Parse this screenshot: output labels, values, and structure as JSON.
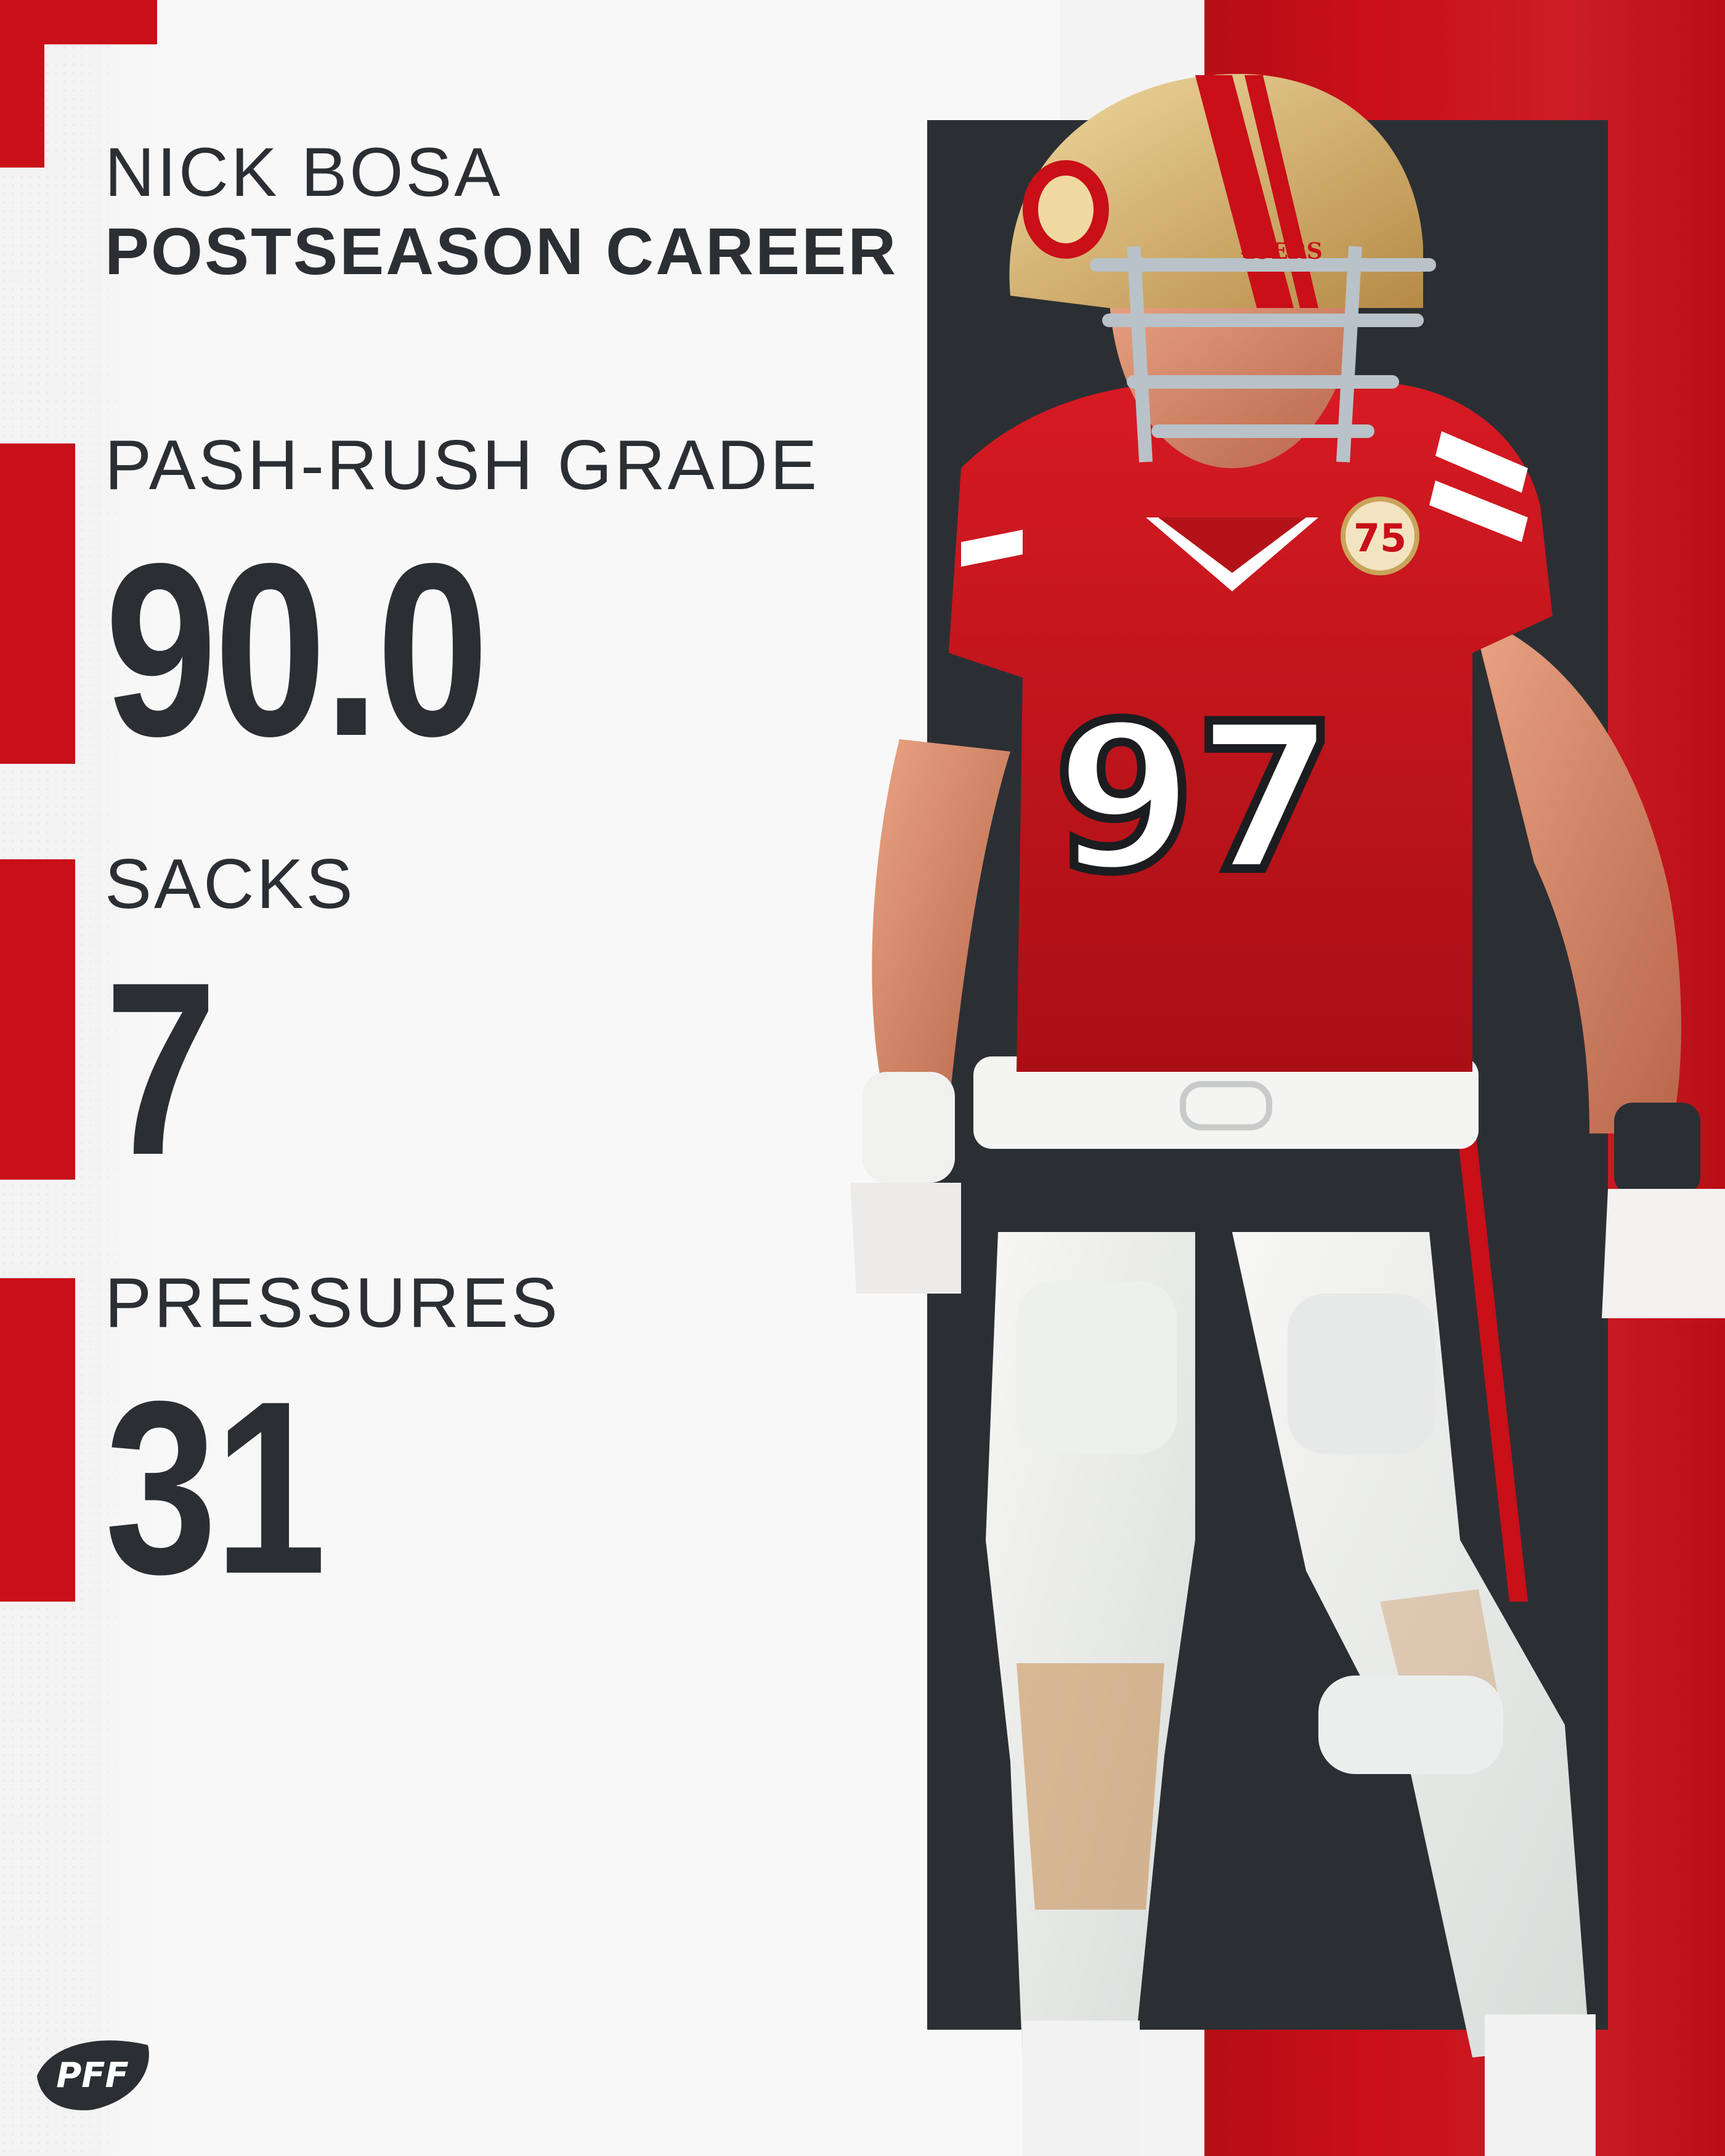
{
  "header": {
    "player_name": "NICK BOSA",
    "subtitle": "POSTSEASON CAREER"
  },
  "stats": [
    {
      "label": "PASH-RUSH GRADE",
      "value": "90.0"
    },
    {
      "label": "SACKS",
      "value": "7"
    },
    {
      "label": "PRESSURES",
      "value": "31"
    }
  ],
  "player_image": {
    "jersey_number": "97",
    "helmet_text": "49ERS",
    "patch_text": "75"
  },
  "brand": {
    "logo_text": "PFF"
  },
  "colors": {
    "accent_red": "#c90f18",
    "dark": "#2b2f33",
    "background": "#f3f3f3",
    "gold": "#c9a45a"
  }
}
